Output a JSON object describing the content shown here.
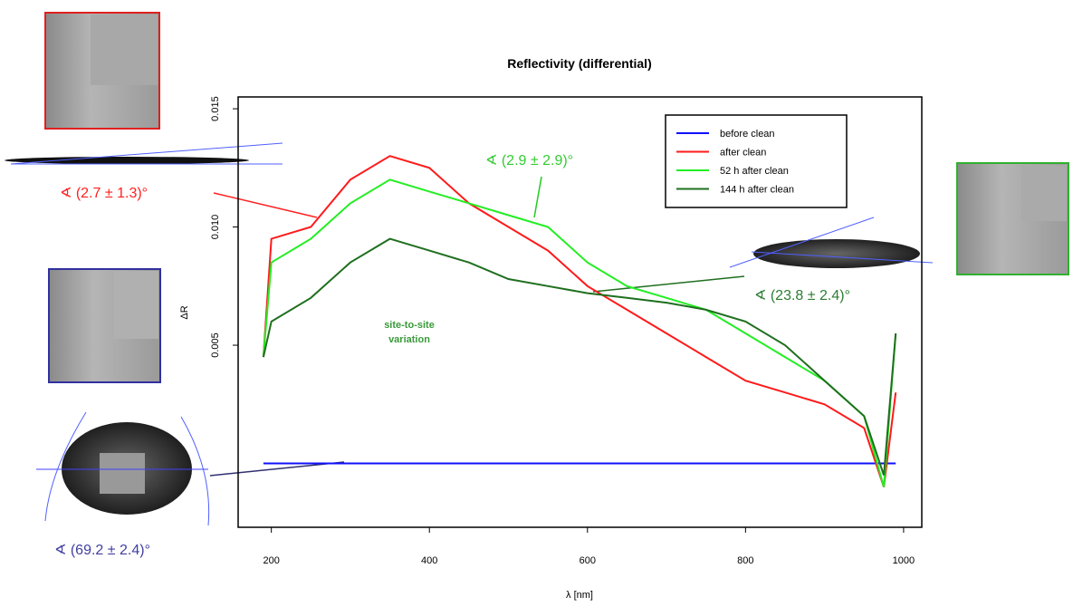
{
  "chart_data": {
    "type": "line",
    "title": "Reflectivity (differential)",
    "x_label": "λ [nm]",
    "y_label": "ΔR",
    "x": [
      190,
      200,
      250,
      300,
      350,
      400,
      450,
      500,
      550,
      600,
      650,
      700,
      750,
      800,
      850,
      900,
      950,
      975,
      990
    ],
    "series": [
      {
        "name": "before clean",
        "color": "#1010ff",
        "values": [
          0,
          0,
          0,
          0,
          0,
          0,
          0,
          0,
          0,
          0,
          0,
          0,
          0,
          0,
          0,
          0,
          0,
          0,
          0
        ]
      },
      {
        "name": "after clean",
        "color": "#ff1a1a",
        "values": [
          0.0045,
          0.0095,
          0.01,
          0.012,
          0.013,
          0.0125,
          0.011,
          0.01,
          0.009,
          0.0075,
          0.0065,
          0.0055,
          0.0045,
          0.0035,
          0.003,
          0.0025,
          0.0015,
          -0.001,
          0.003
        ]
      },
      {
        "name": "52 h after clean",
        "color": "#22ee22",
        "values": [
          0.0045,
          0.0085,
          0.0095,
          0.011,
          0.012,
          0.0115,
          0.011,
          0.0105,
          0.01,
          0.0085,
          0.0075,
          0.007,
          0.0065,
          0.0055,
          0.0045,
          0.0035,
          0.002,
          -0.001,
          0.0055
        ]
      },
      {
        "name": "144 h after clean",
        "color": "#1f6f1f",
        "values": [
          0.0045,
          0.006,
          0.007,
          0.0085,
          0.0095,
          0.009,
          0.0085,
          0.0078,
          0.0075,
          0.0072,
          0.007,
          0.0068,
          0.0065,
          0.006,
          0.005,
          0.0035,
          0.002,
          -0.0005,
          0.0055
        ]
      }
    ],
    "xlim": [
      158,
      1023
    ],
    "xticks": [
      200,
      400,
      600,
      800,
      1000
    ],
    "ylim": [
      -0.0027,
      0.0155
    ],
    "yticks": [
      {
        "value": 0.005,
        "label": "0.005"
      },
      {
        "value": 0.01,
        "label": "0.010"
      },
      {
        "value": 0.015,
        "label": "0.015"
      }
    ],
    "legend": "top-right",
    "annotations": [
      "∢ (2.7 ± 1.3)°",
      "∢ (2.9 ± 2.9)°",
      "∢ (23.8 ± 2.4)°",
      "∢ (69.2 ± 2.4)°",
      "site-to-site",
      "variation"
    ]
  }
}
